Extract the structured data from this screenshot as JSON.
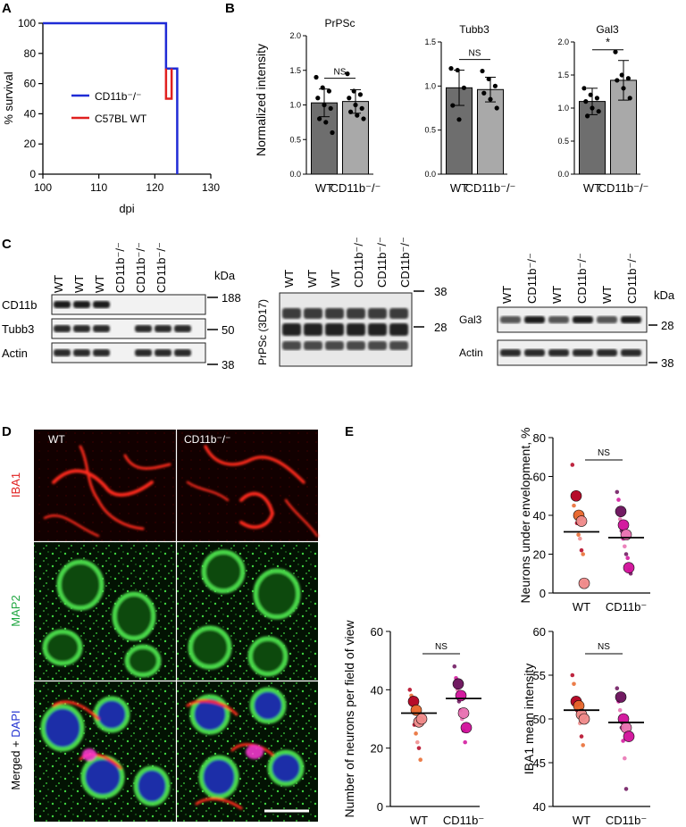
{
  "panels": {
    "a": "A",
    "b": "B",
    "c": "C",
    "d": "D",
    "e": "E"
  },
  "colors": {
    "cd11b_line": "#1f2bd6",
    "wt_line": "#e0201f",
    "bar_wt": "#6e6e6e",
    "bar_ko": "#a9a9a9",
    "rep1": "#b3001f",
    "rep2": "#e8662a",
    "rep3": "#f08a8a",
    "ko1": "#6a0f5a",
    "ko2": "#d10f9a",
    "ko3": "#e86fb0"
  },
  "chart_data": [
    {
      "panel": "A",
      "type": "line",
      "xlabel": "dpi",
      "ylabel": "% survival",
      "xlim": [
        100,
        130
      ],
      "ylim": [
        0,
        100
      ],
      "xticks": [
        "100",
        "110",
        "120",
        "130"
      ],
      "yticks": [
        "0",
        "20",
        "40",
        "60",
        "80",
        "100"
      ],
      "legend": [
        "CD11b⁻/⁻",
        "C57BL WT"
      ],
      "series": [
        {
          "name": "CD11b⁻/⁻",
          "color": "#1f2bd6",
          "x": [
            100,
            122,
            122,
            123,
            123,
            124,
            124
          ],
          "y": [
            100,
            100,
            70,
            70,
            70,
            70,
            0
          ]
        },
        {
          "name": "C57BL WT",
          "color": "#e0201f",
          "x": [
            122,
            122,
            123,
            123
          ],
          "y": [
            70,
            50,
            50,
            70
          ]
        }
      ]
    },
    {
      "panel": "B",
      "type": "bar",
      "ylabel": "Normalized intensity",
      "subplots": [
        {
          "title": "PrPSc",
          "categories": [
            "WT",
            "CD11b⁻/⁻"
          ],
          "values": [
            1.03,
            1.05
          ],
          "err": [
            0.2,
            0.17
          ],
          "sig": "NS",
          "ylim": [
            0,
            2.0
          ],
          "yticks": [
            "0.0",
            "0.5",
            "1.0",
            "1.5",
            "2.0"
          ],
          "points": [
            [
              1.4,
              1.25,
              1.2,
              1.1,
              1.0,
              0.95,
              0.8,
              0.75,
              0.6
            ],
            [
              1.45,
              1.2,
              1.15,
              1.1,
              1.0,
              0.95,
              0.9,
              0.85,
              0.8
            ]
          ]
        },
        {
          "title": "Tubb3",
          "categories": [
            "WT",
            "CD11b⁻/⁻"
          ],
          "values": [
            0.98,
            0.96
          ],
          "err": [
            0.2,
            0.14
          ],
          "sig": "NS",
          "ylim": [
            0,
            1.5
          ],
          "yticks": [
            "0.0",
            "0.5",
            "1.0",
            "1.5"
          ],
          "points": [
            [
              1.2,
              1.18,
              0.98,
              0.78,
              0.62
            ],
            [
              1.17,
              1.08,
              1.0,
              0.92,
              0.85,
              0.75
            ]
          ]
        },
        {
          "title": "Gal3",
          "categories": [
            "WT",
            "CD11b⁻/⁻"
          ],
          "values": [
            1.1,
            1.42
          ],
          "err": [
            0.2,
            0.3
          ],
          "sig": "*",
          "ylim": [
            0,
            2.0
          ],
          "yticks": [
            "0.0",
            "0.5",
            "1.0",
            "1.5",
            "2.0"
          ],
          "points": [
            [
              1.3,
              1.2,
              1.15,
              1.1,
              1.0,
              0.95,
              0.88
            ],
            [
              1.85,
              1.5,
              1.45,
              1.42,
              1.3,
              1.15
            ]
          ]
        }
      ]
    },
    {
      "panel": "E1",
      "type": "scatter",
      "ylabel": "Neurons under envelopment, %",
      "categories": [
        "WT",
        "CD11b⁻"
      ],
      "ylim": [
        0,
        80
      ],
      "yticks": [
        "0",
        "20",
        "40",
        "60",
        "80"
      ],
      "sig": "NS",
      "means": [
        31.5,
        28.5
      ],
      "big": [
        [
          50,
          40,
          37,
          5
        ],
        [
          42,
          35,
          30,
          13
        ]
      ],
      "small": [
        [
          66,
          45,
          40,
          36,
          30,
          28,
          22,
          20,
          5
        ],
        [
          52,
          48,
          38,
          32,
          28,
          24,
          20,
          18,
          12,
          10
        ]
      ]
    },
    {
      "panel": "E2",
      "type": "scatter",
      "ylabel": "Number of  neurons per field of view",
      "categories": [
        "WT",
        "CD11b⁻"
      ],
      "ylim": [
        0,
        60
      ],
      "yticks": [
        "0",
        "20",
        "40",
        "60"
      ],
      "sig": "NS",
      "means": [
        32,
        37
      ],
      "big": [
        [
          36,
          33,
          29,
          30
        ],
        [
          42,
          38,
          32,
          27
        ]
      ],
      "small": [
        [
          40,
          38,
          33,
          28,
          25,
          22,
          20,
          16
        ],
        [
          48,
          44,
          40,
          36,
          33,
          30,
          26,
          22
        ]
      ]
    },
    {
      "panel": "E3",
      "type": "scatter",
      "ylabel": "IBA1 mean intensity",
      "categories": [
        "WT",
        "CD11b⁻"
      ],
      "ylim": [
        40,
        60
      ],
      "yticks": [
        "40",
        "45",
        "50",
        "55",
        "60"
      ],
      "sig": "NS",
      "means": [
        51,
        49.6
      ],
      "big": [
        [
          52,
          51.5,
          50.5,
          50
        ],
        [
          52.5,
          50,
          49,
          48
        ]
      ],
      "small": [
        [
          55,
          54,
          52,
          51,
          50.5,
          49.5,
          48,
          47
        ],
        [
          53.5,
          52,
          51,
          49,
          47.5,
          45.5,
          42
        ]
      ]
    }
  ],
  "blots": {
    "panel1": {
      "lanes": [
        "WT",
        "WT",
        "WT",
        "CD11b⁻/⁻",
        "CD11b⁻/⁻",
        "CD11b⁻/⁻"
      ],
      "rows": [
        "CD11b",
        "Tubb3",
        "Actin"
      ],
      "kda_label": "kDa",
      "markers": [
        "188",
        "50",
        "38"
      ]
    },
    "panel2": {
      "lanes": [
        "WT",
        "WT",
        "WT",
        "CD11b⁻/⁻",
        "CD11b⁻/⁻",
        "CD11b⁻/⁻"
      ],
      "row_label": "PrPSc (3D17)",
      "markers": [
        "38",
        "28"
      ]
    },
    "panel3": {
      "lanes": [
        "WT",
        "CD11b⁻/⁻",
        "WT",
        "CD11b⁻/⁻",
        "WT",
        "CD11b⁻/⁻"
      ],
      "rows": [
        "Gal3",
        "Actin"
      ],
      "kda_label": "kDa",
      "markers": [
        "28",
        "38"
      ]
    }
  },
  "micro": {
    "col_wt": "WT",
    "col_ko": "CD11b⁻/⁻",
    "row1": "IBA1",
    "row2": "MAP2",
    "row3_a": "Merged + ",
    "row3_b": "DAPI"
  }
}
